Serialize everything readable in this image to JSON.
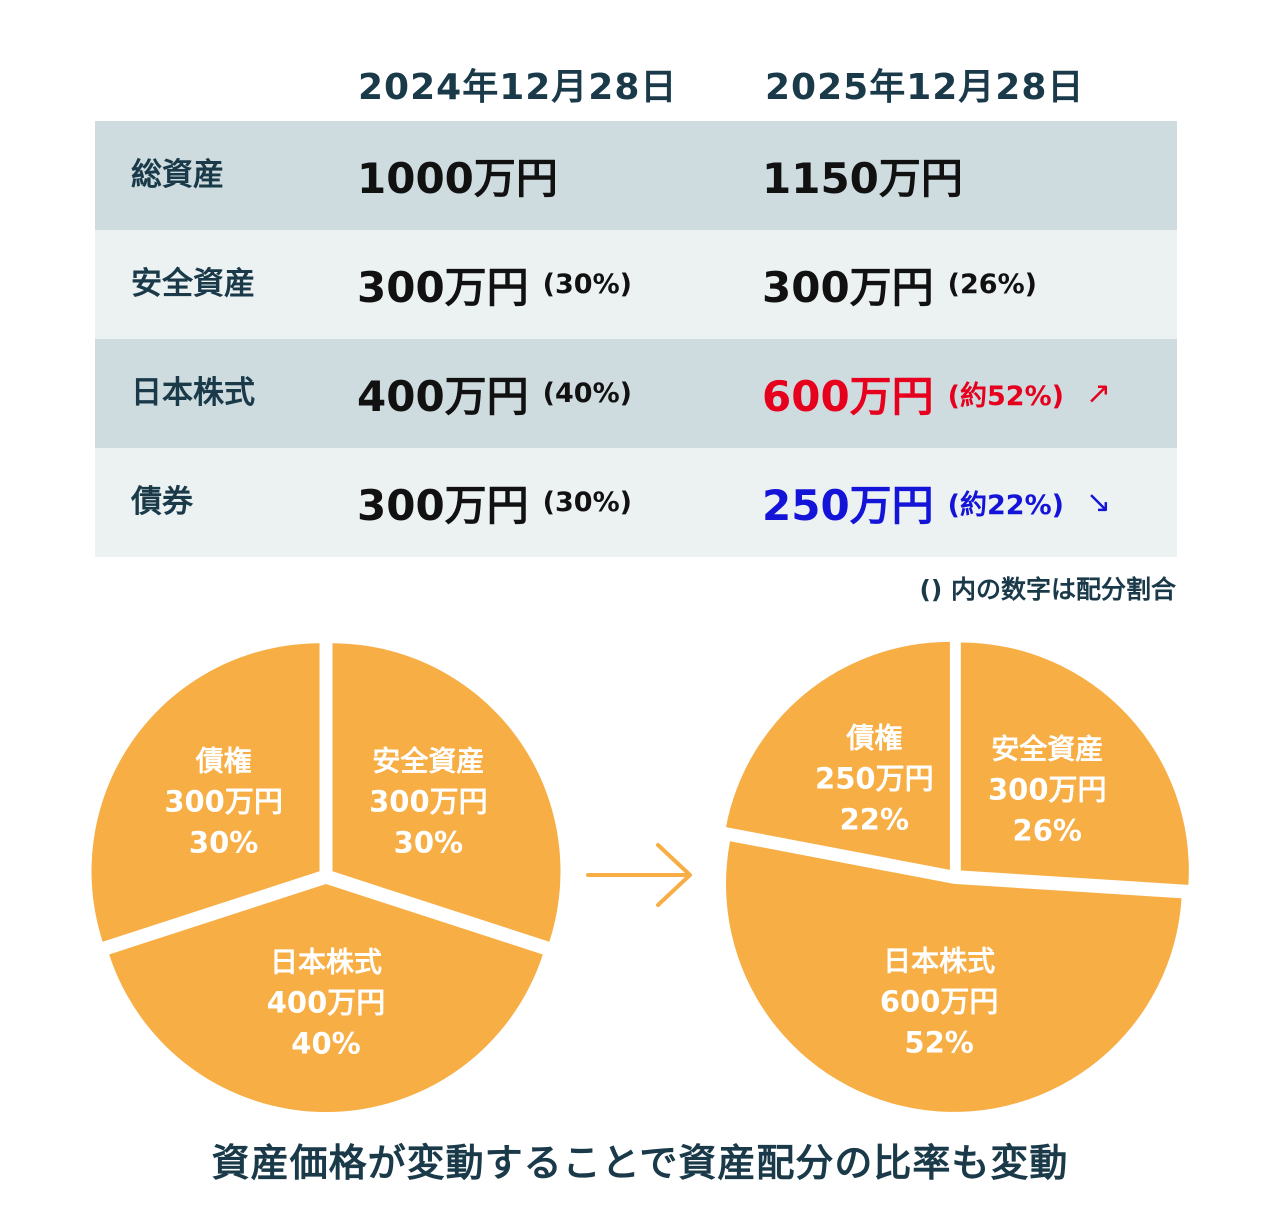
{
  "table": {
    "headers": [
      "2024年12月28日",
      "2025年12月28日"
    ],
    "rows": [
      {
        "label": "総資産",
        "c1_amount": "1000万円",
        "c1_pct": "",
        "c2_amount": "1150万円",
        "c2_pct": "",
        "c2_arrow": ""
      },
      {
        "label": "安全資産",
        "c1_amount": "300万円",
        "c1_pct": "(30%)",
        "c2_amount": "300万円",
        "c2_pct": "(26%)",
        "c2_arrow": ""
      },
      {
        "label": "日本株式",
        "c1_amount": "400万円",
        "c1_pct": "(40%)",
        "c2_amount": "600万円",
        "c2_pct": "(約52%)",
        "c2_arrow": "↗"
      },
      {
        "label": "債券",
        "c1_amount": "300万円",
        "c1_pct": "(30%)",
        "c2_amount": "250万円",
        "c2_pct": "(約22%)",
        "c2_arrow": "↘"
      }
    ],
    "note": "() 内の数字は配分割合"
  },
  "colors": {
    "header_text": "#1a3a4a",
    "row_dark": "#cfdcdf",
    "row_light": "#ecf1f2",
    "increase": "#e6001e",
    "decrease": "#1414d8",
    "pie_fill": "#f7ae45",
    "arrow": "#f7ae45"
  },
  "arrow_icon": "right-arrow-icon",
  "caption": "資産価格が変動することで資産配分の比率も変動",
  "chart_data": [
    {
      "type": "pie",
      "title": "",
      "slices": [
        {
          "name": "安全資産",
          "amount_label": "300万円",
          "percent_label": "30%",
          "value": 30
        },
        {
          "name": "日本株式",
          "amount_label": "400万円",
          "percent_label": "40%",
          "value": 40
        },
        {
          "name": "債権",
          "amount_label": "300万円",
          "percent_label": "30%",
          "value": 30
        }
      ]
    },
    {
      "type": "pie",
      "title": "",
      "slices": [
        {
          "name": "安全資産",
          "amount_label": "300万円",
          "percent_label": "26%",
          "value": 26
        },
        {
          "name": "日本株式",
          "amount_label": "600万円",
          "percent_label": "52%",
          "value": 52
        },
        {
          "name": "債権",
          "amount_label": "250万円",
          "percent_label": "22%",
          "value": 22
        }
      ]
    }
  ]
}
